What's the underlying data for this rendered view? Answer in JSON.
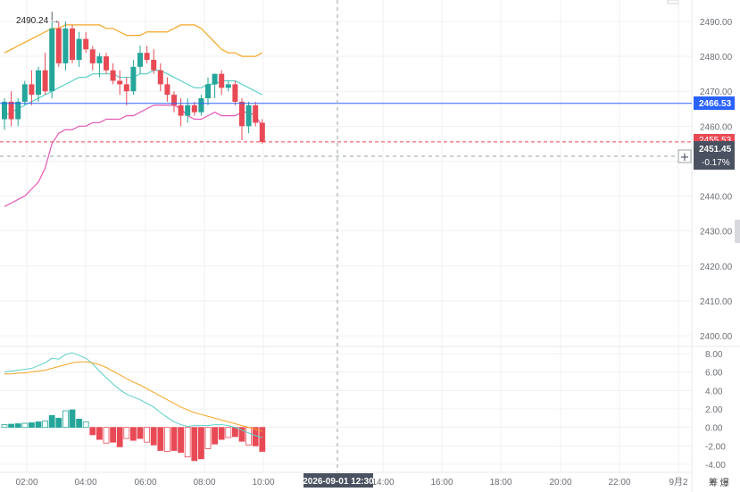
{
  "chart_data": {
    "type": "candlestick",
    "price_axis": {
      "ticks": [
        "2490.00",
        "2480.00",
        "2470.00",
        "2460.00",
        "2450.00",
        "2440.00",
        "2430.00",
        "2420.00",
        "2410.00",
        "2400.00"
      ],
      "range": [
        2392,
        2496
      ]
    },
    "macd_axis": {
      "ticks": [
        "8.00",
        "6.00",
        "4.00",
        "2.00",
        "0.00",
        "-2.00",
        "-4.00"
      ],
      "range": [
        -4.5,
        9.5
      ]
    },
    "time_axis": {
      "ticks": [
        "02:00",
        "04:00",
        "06:00",
        "08:00",
        "10:00",
        "14:00",
        "16:00",
        "18:00",
        "20:00",
        "22:00",
        "9月2"
      ]
    },
    "crosshair": {
      "time_label": "2026-09-01 12:30",
      "price_label": "2451.45",
      "change_label": "-0.17%"
    },
    "price_lines": [
      {
        "label": "2466.53",
        "value": 2466.53,
        "color": "#2962ff"
      },
      {
        "label": "2455.53",
        "value": 2455.53,
        "color": "#e84a55"
      }
    ],
    "high_marker": {
      "label": "2490.24 →",
      "value": 2490.24
    },
    "candles": [
      {
        "o": 2462,
        "h": 2468,
        "l": 2459,
        "c": 2467
      },
      {
        "o": 2467,
        "h": 2470,
        "l": 2460,
        "c": 2462
      },
      {
        "o": 2462,
        "h": 2468,
        "l": 2460,
        "c": 2467
      },
      {
        "o": 2467,
        "h": 2473,
        "l": 2466,
        "c": 2472
      },
      {
        "o": 2472,
        "h": 2476,
        "l": 2466,
        "c": 2469
      },
      {
        "o": 2469,
        "h": 2477,
        "l": 2467,
        "c": 2476
      },
      {
        "o": 2476,
        "h": 2481,
        "l": 2469,
        "c": 2470
      },
      {
        "o": 2470,
        "h": 2490,
        "l": 2468,
        "c": 2488
      },
      {
        "o": 2488,
        "h": 2490,
        "l": 2477,
        "c": 2478
      },
      {
        "o": 2478,
        "h": 2490,
        "l": 2476,
        "c": 2488
      },
      {
        "o": 2488,
        "h": 2489,
        "l": 2478,
        "c": 2479
      },
      {
        "o": 2479,
        "h": 2487,
        "l": 2477,
        "c": 2485
      },
      {
        "o": 2485,
        "h": 2487,
        "l": 2481,
        "c": 2482
      },
      {
        "o": 2482,
        "h": 2483,
        "l": 2476,
        "c": 2478
      },
      {
        "o": 2478,
        "h": 2481,
        "l": 2474,
        "c": 2480
      },
      {
        "o": 2480,
        "h": 2481,
        "l": 2475,
        "c": 2476
      },
      {
        "o": 2476,
        "h": 2478,
        "l": 2472,
        "c": 2473
      },
      {
        "o": 2473,
        "h": 2476,
        "l": 2469,
        "c": 2472
      },
      {
        "o": 2472,
        "h": 2474,
        "l": 2466,
        "c": 2470
      },
      {
        "o": 2470,
        "h": 2479,
        "l": 2469,
        "c": 2477
      },
      {
        "o": 2477,
        "h": 2483,
        "l": 2475,
        "c": 2481
      },
      {
        "o": 2481,
        "h": 2483,
        "l": 2478,
        "c": 2479
      },
      {
        "o": 2479,
        "h": 2482,
        "l": 2475,
        "c": 2476
      },
      {
        "o": 2476,
        "h": 2478,
        "l": 2470,
        "c": 2472
      },
      {
        "o": 2472,
        "h": 2474,
        "l": 2467,
        "c": 2469
      },
      {
        "o": 2469,
        "h": 2470,
        "l": 2464,
        "c": 2466
      },
      {
        "o": 2466,
        "h": 2468,
        "l": 2460,
        "c": 2463
      },
      {
        "o": 2463,
        "h": 2468,
        "l": 2461,
        "c": 2466
      },
      {
        "o": 2466,
        "h": 2467,
        "l": 2463,
        "c": 2464
      },
      {
        "o": 2464,
        "h": 2469,
        "l": 2463,
        "c": 2468
      },
      {
        "o": 2468,
        "h": 2474,
        "l": 2466,
        "c": 2472
      },
      {
        "o": 2472,
        "h": 2475,
        "l": 2468,
        "c": 2475
      },
      {
        "o": 2475,
        "h": 2476,
        "l": 2469,
        "c": 2471
      },
      {
        "o": 2471,
        "h": 2473,
        "l": 2470,
        "c": 2472
      },
      {
        "o": 2472,
        "h": 2473,
        "l": 2466,
        "c": 2467
      },
      {
        "o": 2467,
        "h": 2468,
        "l": 2456,
        "c": 2460
      },
      {
        "o": 2460,
        "h": 2467,
        "l": 2458,
        "c": 2466
      },
      {
        "o": 2466,
        "h": 2467,
        "l": 2460,
        "c": 2461
      },
      {
        "o": 2461,
        "h": 2462,
        "l": 2455,
        "c": 2455.5
      }
    ],
    "bollinger": {
      "upper": [
        2481,
        2482,
        2483,
        2484,
        2485,
        2486,
        2487,
        2488,
        2488,
        2489,
        2489,
        2489,
        2489,
        2489,
        2489,
        2488,
        2488,
        2487,
        2486,
        2486,
        2486,
        2487,
        2487,
        2487,
        2487,
        2488,
        2489,
        2489,
        2489,
        2488,
        2486,
        2484,
        2482,
        2481,
        2481,
        2480,
        2480,
        2480,
        2481
      ],
      "middle": [
        2463,
        2464,
        2465,
        2466,
        2467,
        2468,
        2469,
        2470,
        2471,
        2472,
        2473,
        2474,
        2474,
        2475,
        2475,
        2475,
        2475,
        2474,
        2474,
        2474,
        2475,
        2475,
        2476,
        2476,
        2475,
        2474,
        2473,
        2472,
        2471,
        2471,
        2472,
        2472,
        2473,
        2473,
        2473,
        2472,
        2471,
        2470,
        2469
      ],
      "lower": [
        2437,
        2438,
        2439,
        2440,
        2442,
        2444,
        2448,
        2455,
        2458,
        2459,
        2459,
        2460,
        2460,
        2461,
        2461,
        2462,
        2462,
        2462,
        2463,
        2463,
        2464,
        2465,
        2466,
        2466,
        2466,
        2466,
        2465,
        2463,
        2462,
        2462,
        2463,
        2464,
        2463,
        2463,
        2463,
        2464,
        2464,
        2463,
        2460
      ]
    },
    "macd": {
      "hist": [
        0.3,
        0.35,
        0.4,
        0.45,
        0.5,
        0.6,
        0.7,
        1.3,
        1.0,
        1.8,
        1.9,
        0.9,
        0.6,
        -0.8,
        -1.3,
        -1.7,
        -1.6,
        -2.1,
        -1.2,
        -1.4,
        -1.2,
        -1.6,
        -1.9,
        -2.5,
        -2.6,
        -2.5,
        -2.7,
        -3.2,
        -3.6,
        -3.4,
        -2.3,
        -1.8,
        -1.3,
        -1.1,
        -1.0,
        -1.5,
        -1.9,
        -2.0,
        -2.6
      ],
      "macd": [
        6.0,
        6.1,
        6.2,
        6.3,
        6.4,
        6.7,
        7.0,
        7.5,
        7.4,
        7.9,
        8.1,
        7.8,
        7.5,
        6.9,
        6.1,
        5.4,
        4.7,
        4.1,
        3.6,
        3.3,
        3.0,
        2.6,
        2.2,
        1.6,
        1.1,
        0.6,
        0.3,
        0.1,
        0.2,
        0.2,
        0.2,
        0.3,
        0.3,
        0.2,
        0.0,
        -0.3,
        -0.6,
        -0.9,
        -1.1
      ],
      "signal": [
        5.8,
        5.8,
        5.9,
        5.9,
        6.0,
        6.1,
        6.2,
        6.4,
        6.6,
        6.8,
        7.0,
        7.1,
        7.1,
        7.0,
        6.8,
        6.5,
        6.1,
        5.7,
        5.3,
        4.9,
        4.6,
        4.2,
        3.8,
        3.4,
        3.0,
        2.6,
        2.2,
        1.9,
        1.6,
        1.4,
        1.2,
        1.0,
        0.8,
        0.6,
        0.4,
        0.2,
        0.0,
        -0.2,
        -0.4
      ]
    },
    "colors": {
      "up": "#26a69a",
      "down": "#e84a55",
      "bb_upper": "#f5a623",
      "bb_middle": "#5ad0c8",
      "bb_lower": "#e458b6",
      "macd_line": "#5ad0c8",
      "signal_line": "#f5a623",
      "grid": "#e6e8eb",
      "text": "#6b6f75",
      "crosshair": "#9aa0a6",
      "tag_bg": "#4a5160"
    }
  },
  "toolbar": {
    "bottom_right": "筹  爆"
  }
}
